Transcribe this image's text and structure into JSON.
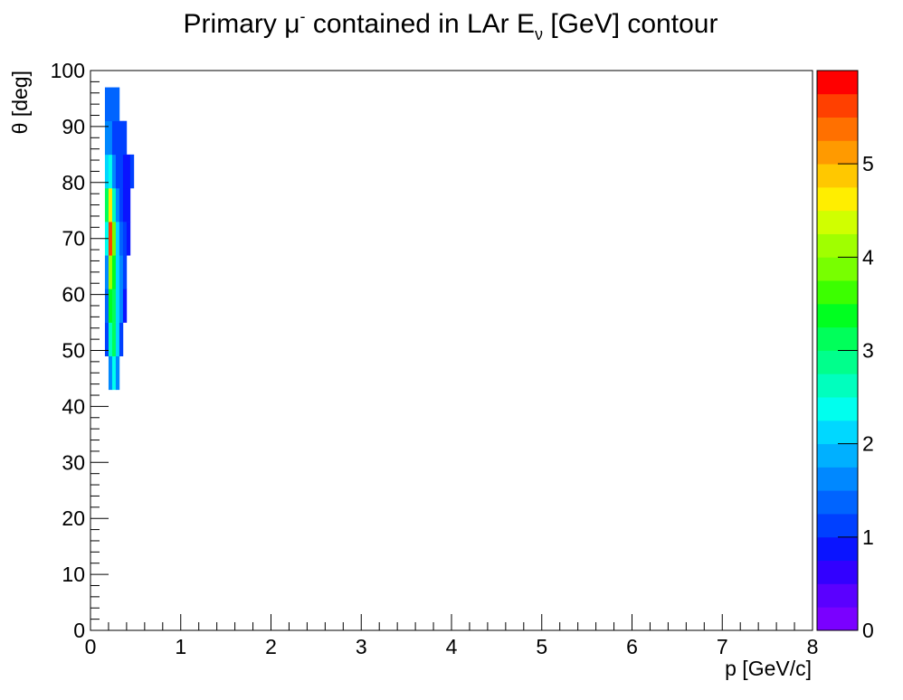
{
  "chart_data": {
    "type": "heatmap",
    "title": {
      "text": "Primary μ",
      "superscript": "-",
      "middle": " contained in LAr E",
      "subscript": "ν",
      "suffix": " [GeV] contour"
    },
    "xlabel": "p [GeV/c]",
    "ylabel": "θ [deg]",
    "xlim": [
      0,
      8
    ],
    "ylim": [
      0,
      100
    ],
    "zlim": [
      0,
      6
    ],
    "x_ticks": [
      0,
      1,
      2,
      3,
      4,
      5,
      6,
      7,
      8
    ],
    "y_ticks": [
      0,
      10,
      20,
      30,
      40,
      50,
      60,
      70,
      80,
      90,
      100
    ],
    "z_ticks": [
      0,
      1,
      2,
      3,
      4,
      5
    ],
    "palette": [
      "#7a00ff",
      "#5a00ff",
      "#3200ff",
      "#0a14ff",
      "#0040ff",
      "#0064ff",
      "#0088ff",
      "#00b0ff",
      "#00d8ff",
      "#00ffee",
      "#00ffbe",
      "#00ff8c",
      "#00ff5a",
      "#00ff20",
      "#3cff00",
      "#78ff00",
      "#a0ff00",
      "#d0ff00",
      "#ffee00",
      "#ffc800",
      "#ff9a00",
      "#ff7000",
      "#ff4000",
      "#ff0000"
    ],
    "bin_width": 0.04,
    "bin_height": 1,
    "colz": true,
    "grid": false,
    "cells": [
      [
        0.2,
        46,
        1.6
      ],
      [
        0.24,
        46,
        2.4
      ],
      [
        0.28,
        46,
        1.6
      ],
      [
        0.16,
        52,
        1.2
      ],
      [
        0.2,
        52,
        2.6
      ],
      [
        0.24,
        52,
        3.2
      ],
      [
        0.28,
        52,
        2.0
      ],
      [
        0.32,
        52,
        1.2
      ],
      [
        0.16,
        58,
        1.4
      ],
      [
        0.2,
        58,
        3.4
      ],
      [
        0.24,
        58,
        3.0
      ],
      [
        0.28,
        58,
        2.2
      ],
      [
        0.32,
        58,
        1.6
      ],
      [
        0.36,
        58,
        0.9
      ],
      [
        0.16,
        64,
        1.6
      ],
      [
        0.2,
        64,
        4.2
      ],
      [
        0.24,
        64,
        3.4
      ],
      [
        0.28,
        64,
        2.2
      ],
      [
        0.32,
        64,
        1.6
      ],
      [
        0.36,
        64,
        1.0
      ],
      [
        0.16,
        70,
        2.4
      ],
      [
        0.2,
        70,
        5.6
      ],
      [
        0.24,
        70,
        3.8
      ],
      [
        0.28,
        70,
        2.2
      ],
      [
        0.32,
        70,
        1.4
      ],
      [
        0.36,
        70,
        1.0
      ],
      [
        0.4,
        70,
        0.9
      ],
      [
        0.16,
        76,
        3.2
      ],
      [
        0.2,
        76,
        4.6
      ],
      [
        0.24,
        76,
        2.6
      ],
      [
        0.28,
        76,
        1.6
      ],
      [
        0.32,
        76,
        1.2
      ],
      [
        0.36,
        76,
        0.9
      ],
      [
        0.4,
        76,
        0.9
      ],
      [
        0.16,
        82,
        2.2
      ],
      [
        0.2,
        82,
        2.4
      ],
      [
        0.24,
        82,
        1.6
      ],
      [
        0.28,
        82,
        1.2
      ],
      [
        0.32,
        82,
        1.0
      ],
      [
        0.36,
        82,
        0.9
      ],
      [
        0.4,
        82,
        0.9
      ],
      [
        0.44,
        82,
        1.0
      ],
      [
        0.16,
        88,
        1.6
      ],
      [
        0.2,
        88,
        1.6
      ],
      [
        0.24,
        88,
        1.2
      ],
      [
        0.28,
        88,
        1.0
      ],
      [
        0.32,
        88,
        1.0
      ],
      [
        0.36,
        88,
        1.2
      ],
      [
        0.16,
        94,
        1.4
      ],
      [
        0.2,
        94,
        1.4
      ],
      [
        0.24,
        94,
        1.4
      ],
      [
        0.28,
        94,
        1.4
      ]
    ]
  }
}
